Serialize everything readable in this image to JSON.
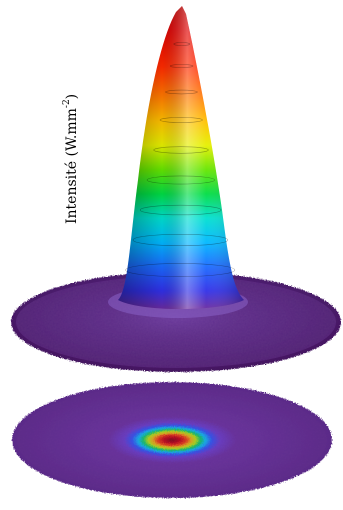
{
  "chart_data": {
    "type": "surface-3d",
    "zlabel": "Intensité (W.mm",
    "zlabel_exponent": "-2",
    "zlabel_close": ")",
    "colormap": [
      "#3a0a52",
      "#5b2a86",
      "#2a2aff",
      "#0099ff",
      "#00e5e5",
      "#00e000",
      "#ffff00",
      "#ff8c00",
      "#ff0000",
      "#d40000"
    ],
    "base_color": "#5a2c7a",
    "views": [
      "3d-surface",
      "2d-projection"
    ]
  }
}
